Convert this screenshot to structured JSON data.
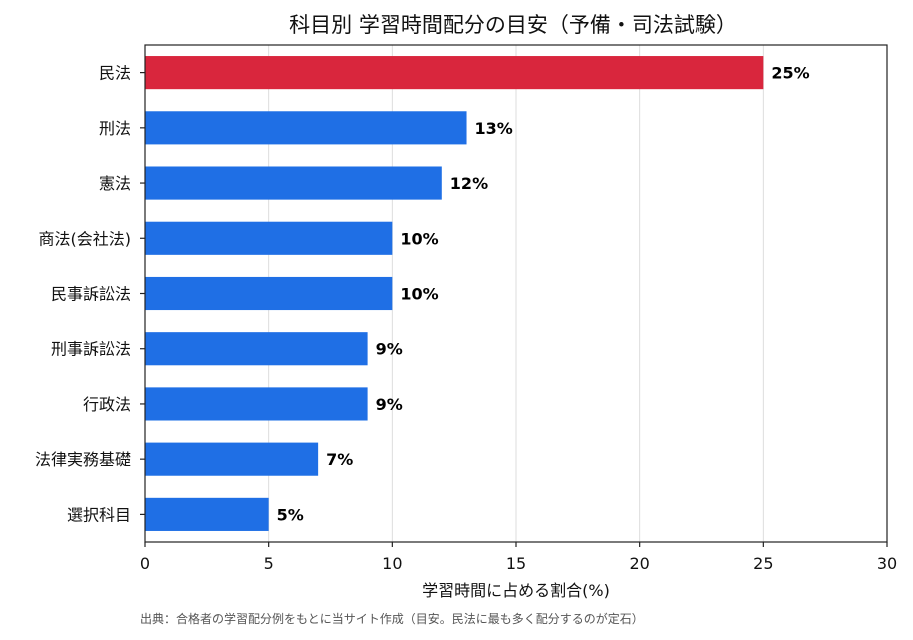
{
  "chart_data": {
    "type": "bar",
    "orientation": "horizontal",
    "title": "科目別 学習時間配分の目安（予備・司法試験）",
    "xlabel": "学習時間に占める割合(%)",
    "ylabel": "",
    "categories": [
      "民法",
      "刑法",
      "憲法",
      "商法(会社法)",
      "民事訴訟法",
      "刑事訴訟法",
      "行政法",
      "法律実務基礎",
      "選択科目"
    ],
    "values": [
      25,
      13,
      12,
      10,
      10,
      9,
      9,
      7,
      5
    ],
    "data_labels": [
      "25%",
      "13%",
      "12%",
      "10%",
      "10%",
      "9%",
      "9%",
      "7%",
      "5%"
    ],
    "xlim": [
      0,
      30
    ],
    "xticks": [
      0,
      5,
      10,
      15,
      20,
      25,
      30
    ],
    "xtick_labels": [
      "0",
      "5",
      "10",
      "15",
      "20",
      "25",
      "30"
    ],
    "grid": "vertical",
    "legend": "none",
    "colors": {
      "highlight": "#d9263d",
      "default": "#1f6fe5"
    },
    "highlight_index": 0
  },
  "source_note": "出典：合格者の学習配分例をもとに当サイト作成（目安。民法に最も多く配分するのが定石）"
}
